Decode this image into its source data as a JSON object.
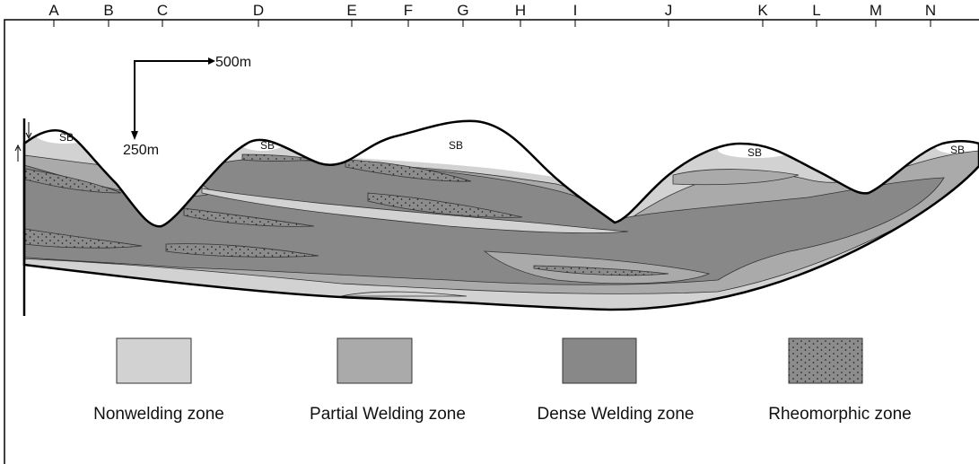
{
  "columns": [
    "A",
    "B",
    "C",
    "D",
    "E",
    "F",
    "G",
    "H",
    "I",
    "J",
    "K",
    "L",
    "M",
    "N"
  ],
  "scale": {
    "horizontal": "500m",
    "vertical": "250m"
  },
  "sb_labels": [
    "SB",
    "SB",
    "SB",
    "SB",
    "SB"
  ],
  "legend": [
    "Nonwelding zone",
    "Partial Welding zone",
    "Dense Welding zone",
    "Rheomorphic zone"
  ]
}
